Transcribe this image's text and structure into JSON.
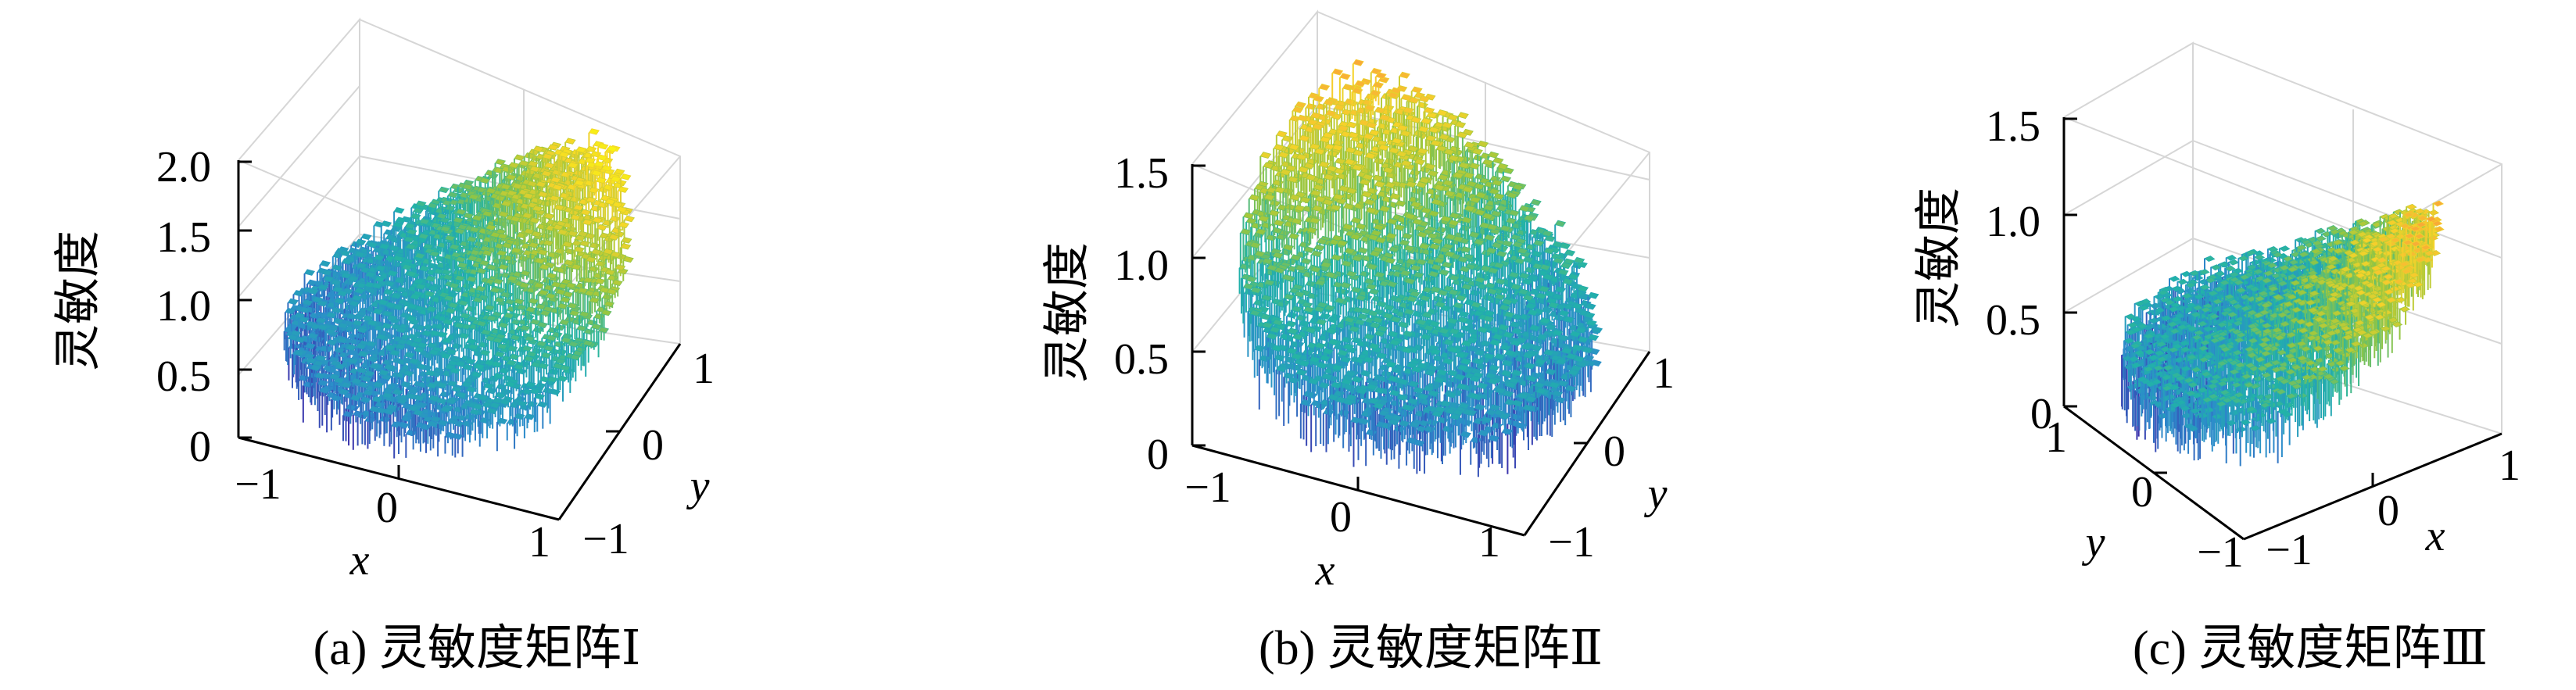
{
  "chart_data": [
    {
      "type": "surface",
      "caption": "(a) 灵敏度矩阵Ⅰ",
      "xlabel": "x",
      "ylabel": "y",
      "zlabel": "灵敏度",
      "x_ticks": [
        "−1",
        "0",
        "1"
      ],
      "y_ticks": [
        "−1",
        "0",
        "1"
      ],
      "z_ticks": [
        "0",
        "0.5",
        "1.0",
        "1.5",
        "2.0"
      ],
      "xlim": [
        -1,
        1
      ],
      "ylim": [
        -1,
        1
      ],
      "zlim": [
        0,
        2.0
      ],
      "peak": {
        "x": 1,
        "y": 1,
        "z": 1.6
      },
      "colormap": [
        "#3e26a8",
        "#2c8ccb",
        "#21b3a8",
        "#98c63f",
        "#f5d32a",
        "#f9fb0e"
      ]
    },
    {
      "type": "surface",
      "caption": "(b) 灵敏度矩阵Ⅱ",
      "xlabel": "x",
      "ylabel": "y",
      "zlabel": "灵敏度",
      "x_ticks": [
        "−1",
        "0",
        "1"
      ],
      "y_ticks": [
        "−1",
        "0",
        "1"
      ],
      "z_ticks": [
        "0",
        "0.5",
        "1.0",
        "1.5"
      ],
      "xlim": [
        -1,
        1
      ],
      "ylim": [
        -1,
        1
      ],
      "zlim": [
        0,
        1.5
      ],
      "peak": {
        "x": -1,
        "y": 1,
        "z": 1.3
      },
      "colormap": [
        "#3e26a8",
        "#2c8ccb",
        "#21b3a8",
        "#98c63f",
        "#f5d32a",
        "#f9a33a"
      ]
    },
    {
      "type": "surface",
      "caption": "(c) 灵敏度矩阵Ⅲ",
      "xlabel": "x",
      "ylabel": "y",
      "zlabel": "灵敏度",
      "x_ticks": [
        "−1",
        "0",
        "1"
      ],
      "y_ticks": [
        "−1",
        "0",
        "1"
      ],
      "z_ticks": [
        "0",
        "0.5",
        "1.0",
        "1.5"
      ],
      "xlim": [
        -1,
        1
      ],
      "ylim": [
        -1,
        1
      ],
      "zlim": [
        0,
        1.5
      ],
      "peak": {
        "x": 1,
        "y": 1,
        "z": 1.1
      },
      "colormap": [
        "#3e26a8",
        "#2c8ccb",
        "#21b3a8",
        "#98c63f",
        "#f5d32a",
        "#f9a33a"
      ]
    }
  ]
}
